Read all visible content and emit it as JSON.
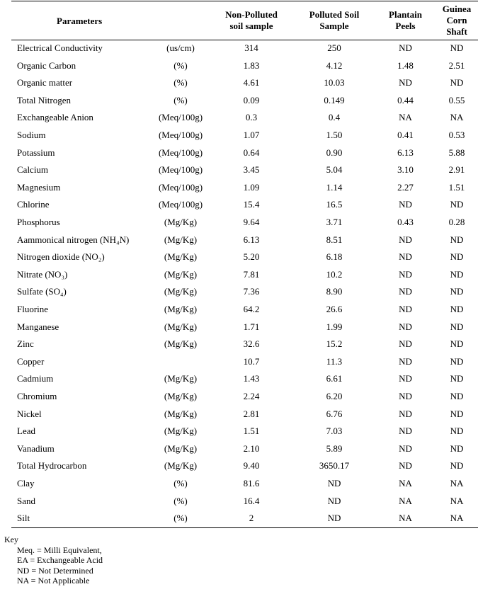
{
  "headers": {
    "parameters": "Parameters",
    "non_polluted": [
      "Non-Polluted",
      "soil sample"
    ],
    "polluted": [
      "Polluted Soil",
      "Sample"
    ],
    "plantain": [
      "Plantain",
      "Peels"
    ],
    "guinea": [
      "Guinea",
      "Corn",
      "Shaft"
    ]
  },
  "rows": [
    {
      "param": "Electrical Conductivity",
      "unit": "(us/cm)",
      "np": "314",
      "p": "250",
      "pl": "ND",
      "gc": "ND"
    },
    {
      "param": "Organic Carbon",
      "unit": "(%)",
      "np": "1.83",
      "p": "4.12",
      "pl": "1.48",
      "gc": "2.51"
    },
    {
      "param": "Organic matter",
      "unit": "(%)",
      "np": "4.61",
      "p": "10.03",
      "pl": "ND",
      "gc": "ND"
    },
    {
      "param": "Total Nitrogen",
      "unit": "(%)",
      "np": "0.09",
      "p": "0.149",
      "pl": "0.44",
      "gc": "0.55"
    },
    {
      "param": "Exchangeable Anion",
      "unit": "(Meq/100g)",
      "np": "0.3",
      "p": "0.4",
      "pl": "NA",
      "gc": "NA"
    },
    {
      "param": "Sodium",
      "unit": "(Meq/100g)",
      "np": "1.07",
      "p": "1.50",
      "pl": "0.41",
      "gc": "0.53"
    },
    {
      "param": "Potassium",
      "unit": "(Meq/100g)",
      "np": "0.64",
      "p": "0.90",
      "pl": "6.13",
      "gc": "5.88"
    },
    {
      "param": "Calcium",
      "unit": "(Meq/100g)",
      "np": "3.45",
      "p": "5.04",
      "pl": "3.10",
      "gc": "2.91"
    },
    {
      "param": "Magnesium",
      "unit": "(Meq/100g)",
      "np": "1.09",
      "p": "1.14",
      "pl": "2.27",
      "gc": "1.51"
    },
    {
      "param": "Chlorine",
      "unit": "(Meq/100g)",
      "np": "15.4",
      "p": "16.5",
      "pl": "ND",
      "gc": "ND"
    },
    {
      "param": "Phosphorus",
      "unit": "(Mg/Kg)",
      "np": "9.64",
      "p": "3.71",
      "pl": "0.43",
      "gc": "0.28"
    },
    {
      "param": "Aammonical nitrogen (NH₄N)",
      "unit": "(Mg/Kg)",
      "np": "6.13",
      "p": "8.51",
      "pl": "ND",
      "gc": "ND"
    },
    {
      "param": "Nitrogen dioxide (NO₂)",
      "unit": "(Mg/Kg)",
      "np": "5.20",
      "p": "6.18",
      "pl": "ND",
      "gc": "ND"
    },
    {
      "param": "Nitrate (NO₃)",
      "unit": "(Mg/Kg)",
      "np": "7.81",
      "p": "10.2",
      "pl": "ND",
      "gc": "ND"
    },
    {
      "param": "Sulfate (SO₄)",
      "unit": "(Mg/Kg)",
      "np": "7.36",
      "p": "8.90",
      "pl": "ND",
      "gc": "ND"
    },
    {
      "param": "Fluorine",
      "unit": "(Mg/Kg)",
      "np": "64.2",
      "p": "26.6",
      "pl": "ND",
      "gc": "ND"
    },
    {
      "param": "Manganese",
      "unit": "(Mg/Kg)",
      "np": "1.71",
      "p": "1.99",
      "pl": "ND",
      "gc": "ND"
    },
    {
      "param": "Zinc",
      "unit": "(Mg/Kg)",
      "np": "32.6",
      "p": "15.2",
      "pl": "ND",
      "gc": "ND"
    },
    {
      "param": "Copper",
      "unit": "",
      "np": "10.7",
      "p": "11.3",
      "pl": "ND",
      "gc": "ND"
    },
    {
      "param": "Cadmium",
      "unit": "(Mg/Kg)",
      "np": "1.43",
      "p": "6.61",
      "pl": "ND",
      "gc": "ND"
    },
    {
      "param": "Chromium",
      "unit": "(Mg/Kg)",
      "np": "2.24",
      "p": "6.20",
      "pl": "ND",
      "gc": "ND"
    },
    {
      "param": "Nickel",
      "unit": "(Mg/Kg)",
      "np": "2.81",
      "p": "6.76",
      "pl": "ND",
      "gc": "ND"
    },
    {
      "param": "Lead",
      "unit": "(Mg/Kg)",
      "np": "1.51",
      "p": "7.03",
      "pl": "ND",
      "gc": "ND"
    },
    {
      "param": "Vanadium",
      "unit": "(Mg/Kg)",
      "np": "2.10",
      "p": "5.89",
      "pl": "ND",
      "gc": "ND"
    },
    {
      "param": "Total Hydrocarbon",
      "unit": "(Mg/Kg)",
      "np": "9.40",
      "p": "3650.17",
      "pl": "ND",
      "gc": "ND"
    },
    {
      "param": "Clay",
      "unit": "(%)",
      "np": "81.6",
      "p": "ND",
      "pl": "NA",
      "gc": "NA"
    },
    {
      "param": "Sand",
      "unit": "(%)",
      "np": "16.4",
      "p": "ND",
      "pl": "NA",
      "gc": "NA"
    },
    {
      "param": "Silt",
      "unit": "(%)",
      "np": "2",
      "p": "ND",
      "pl": "NA",
      "gc": "NA"
    }
  ],
  "key": {
    "title": "Key",
    "lines": [
      "Meq. = Milli Equivalent,",
      "EA = Exchangeable Acid",
      "ND = Not Determined",
      "NA = Not Applicable"
    ]
  }
}
